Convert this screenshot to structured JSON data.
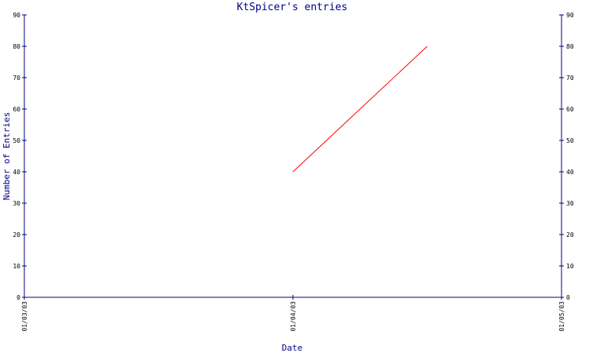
{
  "colors": {
    "axis": "#000080",
    "series": "#ff0000",
    "tick_text": "#000000",
    "background": "#ffffff"
  },
  "chart_data": {
    "type": "line",
    "title": "KtSpicer's entries",
    "xlabel": "Date",
    "ylabel": "Number of Entries",
    "x_ticks": [
      "01/03/03",
      "01/04/03",
      "01/05/03"
    ],
    "y_ticks": [
      0,
      10,
      20,
      30,
      40,
      50,
      60,
      70,
      80,
      90
    ],
    "ylim": [
      0,
      90
    ],
    "grid": false,
    "right_axis": true,
    "series": [
      {
        "x": [
          "2003-01-04",
          "2003-01-04 12:00"
        ],
        "values": [
          40,
          80
        ]
      }
    ]
  }
}
